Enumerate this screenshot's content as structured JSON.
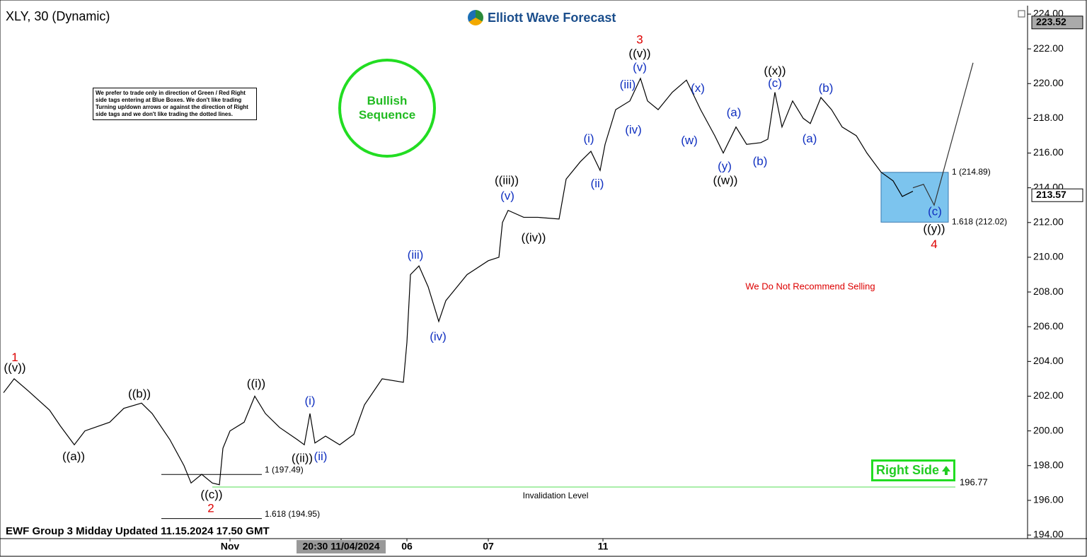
{
  "chart_data": {
    "type": "line",
    "title": "XLY, 30 (Dynamic)",
    "logo": "Elliott Wave Forecast",
    "note": "We prefer to trade only in direction of Green / Red Right side tags entering at Blue Boxes. We don't like trading Turning up/down arrows or against the direction of Right side tags and we don't like trading the dotted lines.",
    "badge": "Bullish Sequence",
    "right_side": "Right Side",
    "footer": "EWF Group 3 Midday Updated 11.15.2024 17.50 GMT",
    "recommendation": "We Do Not Recommend Selling",
    "xlim": [
      0,
      290.4
    ],
    "ylim": [
      194,
      224
    ],
    "yticks": [
      {
        "value": 194,
        "label": "194.00"
      },
      {
        "value": 196,
        "label": "196.00"
      },
      {
        "value": 198,
        "label": "198.00"
      },
      {
        "value": 200,
        "label": "200.00"
      },
      {
        "value": 202,
        "label": "202.00"
      },
      {
        "value": 204,
        "label": "204.00"
      },
      {
        "value": 206,
        "label": "206.00"
      },
      {
        "value": 208,
        "label": "208.00"
      },
      {
        "value": 210,
        "label": "210.00"
      },
      {
        "value": 212,
        "label": "212.00"
      },
      {
        "value": 214,
        "label": "214.00"
      },
      {
        "value": 216,
        "label": "216.00"
      },
      {
        "value": 218,
        "label": "218.00"
      },
      {
        "value": 220,
        "label": "220.00"
      },
      {
        "value": 222,
        "label": "222.00"
      },
      {
        "value": 224,
        "label": "224.00"
      }
    ],
    "xticks": [
      {
        "value": 65,
        "label": "Nov"
      },
      {
        "value": 96.4,
        "label": "20:30 11/04/2024"
      },
      {
        "value": 115,
        "label": "06"
      },
      {
        "value": 138,
        "label": "07"
      },
      {
        "value": 170.4,
        "label": "11"
      }
    ],
    "price_markers": [
      223.52,
      213.57
    ],
    "series": [
      {
        "color": "#000000",
        "x": [
          1,
          4,
          8,
          14,
          17,
          21,
          24,
          31,
          35,
          40,
          43,
          48,
          52,
          54,
          57,
          60,
          62,
          63,
          65,
          69,
          72,
          75,
          79,
          84,
          86,
          87.6,
          89,
          92,
          96,
          100,
          103,
          108,
          114,
          115,
          116,
          118.4,
          121,
          124,
          126,
          132,
          138,
          141,
          142,
          143.6,
          148,
          152,
          158,
          160,
          164,
          167,
          169.6,
          171,
          174,
          178,
          181,
          183,
          186,
          190,
          194,
          198,
          202,
          204.4,
          208,
          211,
          215,
          217,
          219,
          221,
          224,
          227,
          229,
          232,
          235,
          238,
          242,
          245,
          249,
          252.4,
          255,
          258
        ],
        "values": [
          202.2,
          203.0,
          202.3,
          201.2,
          200.3,
          199.2,
          200.0,
          200.5,
          201.3,
          201.6,
          201.0,
          199.5,
          198.0,
          197.0,
          197.5,
          197.0,
          196.9,
          199.0,
          200.0,
          200.5,
          202.0,
          201.0,
          200.2,
          199.5,
          199.2,
          201.0,
          199.3,
          199.7,
          199.2,
          199.8,
          201.5,
          203.0,
          202.8,
          205.1,
          209.0,
          209.5,
          208.3,
          206.3,
          207.5,
          209.0,
          209.8,
          210.0,
          212.0,
          212.7,
          212.3,
          212.3,
          212.2,
          214.5,
          215.5,
          216.1,
          215.0,
          216.5,
          218.5,
          219.0,
          220.3,
          219.0,
          218.5,
          219.5,
          220.2,
          218.5,
          217.0,
          216.0,
          217.5,
          216.5,
          216.6,
          216.8,
          219.5,
          217.5,
          219.0,
          218.0,
          217.7,
          219.2,
          218.5,
          217.5,
          217.0,
          216.0,
          214.9,
          214.4,
          213.5,
          213.8
        ]
      },
      {
        "color": "#333333",
        "x": [
          258,
          261,
          264,
          275
        ],
        "values": [
          214.0,
          214.2,
          213.0,
          221.2
        ]
      }
    ],
    "target_zone": {
      "color": "#7cc4ee",
      "xlim": [
        249,
        268
      ],
      "ylim": [
        212.02,
        214.89
      ],
      "labels": [
        {
          "text": "1 (214.89)",
          "value": 214.89
        },
        {
          "text": "1.618 (212.02)",
          "value": 212.02
        }
      ]
    },
    "levels": [
      {
        "text": "1 (197.49)",
        "value": 197.49,
        "xlim": [
          45.6,
          74
        ]
      },
      {
        "text": "1.618 (194.95)",
        "value": 194.95,
        "xlim": [
          45.6,
          74
        ]
      }
    ],
    "invalidation": {
      "text": "Invalidation Level",
      "label": "196.77",
      "value": 196.77,
      "xlim": [
        60,
        270
      ],
      "color": "#55dd55"
    },
    "annotations": [
      {
        "text": "1",
        "x": 4.2,
        "y": 204.2,
        "color": "#dd0000"
      },
      {
        "text": "((v))",
        "x": 4.2,
        "y": 203.6,
        "color": "#000000"
      },
      {
        "text": "((a))",
        "x": 20.8,
        "y": 198.5,
        "color": "#000000"
      },
      {
        "text": "((b))",
        "x": 39.4,
        "y": 202.1,
        "color": "#000000"
      },
      {
        "text": "((c))",
        "x": 59.8,
        "y": 196.3,
        "color": "#000000"
      },
      {
        "text": "2",
        "x": 59.6,
        "y": 195.5,
        "color": "#dd0000"
      },
      {
        "text": "((i))",
        "x": 72.4,
        "y": 202.7,
        "color": "#000000"
      },
      {
        "text": "((ii))",
        "x": 85.4,
        "y": 198.4,
        "color": "#000000"
      },
      {
        "text": "(i)",
        "x": 87.6,
        "y": 201.7,
        "color": "#1030c0"
      },
      {
        "text": "(ii)",
        "x": 90.6,
        "y": 198.5,
        "color": "#1030c0"
      },
      {
        "text": "(iii)",
        "x": 117.4,
        "y": 210.1,
        "color": "#1030c0"
      },
      {
        "text": "(iv)",
        "x": 123.8,
        "y": 205.4,
        "color": "#1030c0"
      },
      {
        "text": "((iii))",
        "x": 143.2,
        "y": 214.4,
        "color": "#000000"
      },
      {
        "text": "(v)",
        "x": 143.4,
        "y": 213.5,
        "color": "#1030c0"
      },
      {
        "text": "((iv))",
        "x": 150.8,
        "y": 211.1,
        "color": "#000000"
      },
      {
        "text": "(i)",
        "x": 166.4,
        "y": 216.8,
        "color": "#1030c0"
      },
      {
        "text": "(ii)",
        "x": 168.8,
        "y": 214.2,
        "color": "#1030c0"
      },
      {
        "text": "3",
        "x": 180.8,
        "y": 222.5,
        "color": "#dd0000"
      },
      {
        "text": "((v))",
        "x": 180.8,
        "y": 221.7,
        "color": "#000000"
      },
      {
        "text": "(v)",
        "x": 180.8,
        "y": 220.9,
        "color": "#1030c0"
      },
      {
        "text": "(iii)",
        "x": 177.4,
        "y": 219.9,
        "color": "#1030c0"
      },
      {
        "text": "(iv)",
        "x": 179,
        "y": 217.3,
        "color": "#1030c0"
      },
      {
        "text": "(x)",
        "x": 197.2,
        "y": 219.7,
        "color": "#1030c0"
      },
      {
        "text": "(w)",
        "x": 194.8,
        "y": 216.7,
        "color": "#1030c0"
      },
      {
        "text": "(a)",
        "x": 207.4,
        "y": 218.3,
        "color": "#1030c0"
      },
      {
        "text": "(y)",
        "x": 204.8,
        "y": 215.2,
        "color": "#1030c0"
      },
      {
        "text": "((w))",
        "x": 205,
        "y": 214.4,
        "color": "#000000"
      },
      {
        "text": "((x))",
        "x": 219,
        "y": 220.7,
        "color": "#000000"
      },
      {
        "text": "(c)",
        "x": 219,
        "y": 220.0,
        "color": "#1030c0"
      },
      {
        "text": "(b)",
        "x": 214.8,
        "y": 215.5,
        "color": "#1030c0"
      },
      {
        "text": "(b)",
        "x": 233.4,
        "y": 219.7,
        "color": "#1030c0"
      },
      {
        "text": "(a)",
        "x": 228.8,
        "y": 216.8,
        "color": "#1030c0"
      },
      {
        "text": "(c)",
        "x": 264.2,
        "y": 212.6,
        "color": "#1030c0"
      },
      {
        "text": "((y))",
        "x": 264,
        "y": 211.6,
        "color": "#000000"
      },
      {
        "text": "4",
        "x": 264,
        "y": 210.7,
        "color": "#dd0000"
      }
    ]
  }
}
